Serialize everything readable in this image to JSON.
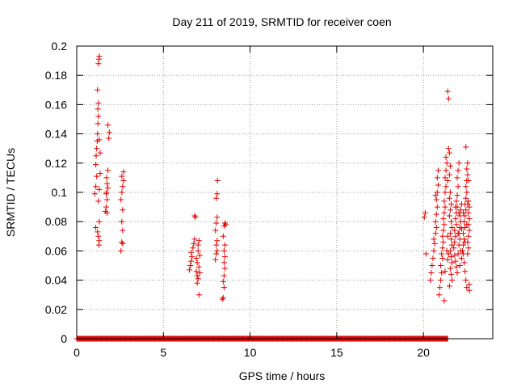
{
  "chart_data": {
    "type": "scatter",
    "title": "Day 211 of 2019, SRMTID for receiver coen",
    "xlabel": "GPS time / hours",
    "ylabel": "SRMTID / TECUs",
    "xlim": [
      0,
      24
    ],
    "ylim": [
      0,
      0.2
    ],
    "x_ticks": [
      0,
      5,
      10,
      15,
      20
    ],
    "x_tick_labels": [
      "0",
      "5",
      "10",
      "15",
      "20"
    ],
    "y_ticks": [
      0,
      0.02,
      0.04,
      0.06,
      0.08,
      0.1,
      0.12,
      0.14,
      0.16,
      0.18,
      0.2
    ],
    "y_tick_labels": [
      "0",
      "0.02",
      "0.04",
      "0.06",
      "0.08",
      "0.1",
      "0.12",
      "0.14",
      "0.16",
      "0.18",
      "0.2"
    ],
    "grid": true,
    "marker": "+",
    "color": "#e00000",
    "series": [
      {
        "name": "SRMTID",
        "points": [
          [
            1.05,
            0.099
          ],
          [
            1.1,
            0.104
          ],
          [
            1.15,
            0.111
          ],
          [
            1.1,
            0.119
          ],
          [
            1.12,
            0.125
          ],
          [
            1.15,
            0.13
          ],
          [
            1.18,
            0.135
          ],
          [
            1.2,
            0.14
          ],
          [
            1.22,
            0.147
          ],
          [
            1.25,
            0.152
          ],
          [
            1.22,
            0.157
          ],
          [
            1.25,
            0.161
          ],
          [
            1.2,
            0.17
          ],
          [
            1.25,
            0.188
          ],
          [
            1.28,
            0.191
          ],
          [
            1.3,
            0.193
          ],
          [
            1.1,
            0.076
          ],
          [
            1.2,
            0.073
          ],
          [
            1.25,
            0.07
          ],
          [
            1.3,
            0.067
          ],
          [
            1.28,
            0.064
          ],
          [
            1.3,
            0.08
          ],
          [
            1.25,
            0.094
          ],
          [
            1.3,
            0.102
          ],
          [
            1.35,
            0.113
          ],
          [
            1.3,
            0.136
          ],
          [
            1.35,
            0.127
          ],
          [
            1.65,
            0.087
          ],
          [
            1.7,
            0.09
          ],
          [
            1.75,
            0.095
          ],
          [
            1.72,
            0.1
          ],
          [
            1.8,
            0.103
          ],
          [
            1.75,
            0.106
          ],
          [
            1.72,
            0.11
          ],
          [
            1.8,
            0.115
          ],
          [
            1.85,
            0.137
          ],
          [
            1.88,
            0.141
          ],
          [
            1.8,
            0.146
          ],
          [
            1.7,
            0.099
          ],
          [
            1.75,
            0.086
          ],
          [
            2.55,
            0.06
          ],
          [
            2.6,
            0.066
          ],
          [
            2.65,
            0.074
          ],
          [
            2.6,
            0.08
          ],
          [
            2.65,
            0.088
          ],
          [
            2.55,
            0.095
          ],
          [
            2.6,
            0.1
          ],
          [
            2.65,
            0.104
          ],
          [
            2.7,
            0.108
          ],
          [
            2.6,
            0.111
          ],
          [
            2.7,
            0.114
          ],
          [
            2.65,
            0.065
          ],
          [
            6.5,
            0.047
          ],
          [
            6.55,
            0.05
          ],
          [
            6.6,
            0.053
          ],
          [
            6.65,
            0.056
          ],
          [
            6.6,
            0.059
          ],
          [
            6.7,
            0.062
          ],
          [
            6.75,
            0.065
          ],
          [
            6.8,
            0.068
          ],
          [
            6.85,
            0.083
          ],
          [
            6.8,
            0.084
          ],
          [
            6.9,
            0.046
          ],
          [
            6.95,
            0.043
          ],
          [
            7.0,
            0.041
          ],
          [
            6.95,
            0.038
          ],
          [
            7.05,
            0.03
          ],
          [
            7.0,
            0.064
          ],
          [
            7.05,
            0.067
          ],
          [
            6.9,
            0.055
          ],
          [
            6.95,
            0.052
          ],
          [
            7.05,
            0.049
          ],
          [
            7.1,
            0.045
          ],
          [
            7.0,
            0.06
          ],
          [
            7.1,
            0.057
          ],
          [
            8.0,
            0.054
          ],
          [
            8.05,
            0.058
          ],
          [
            8.1,
            0.06
          ],
          [
            8.05,
            0.064
          ],
          [
            8.1,
            0.067
          ],
          [
            8.0,
            0.074
          ],
          [
            8.05,
            0.079
          ],
          [
            8.1,
            0.083
          ],
          [
            8.05,
            0.096
          ],
          [
            8.1,
            0.099
          ],
          [
            8.12,
            0.108
          ],
          [
            8.4,
            0.027
          ],
          [
            8.45,
            0.028
          ],
          [
            8.5,
            0.035
          ],
          [
            8.45,
            0.039
          ],
          [
            8.5,
            0.043
          ],
          [
            8.55,
            0.048
          ],
          [
            8.5,
            0.052
          ],
          [
            8.55,
            0.056
          ],
          [
            8.5,
            0.06
          ],
          [
            8.55,
            0.064
          ],
          [
            8.45,
            0.07
          ],
          [
            8.5,
            0.077
          ],
          [
            8.55,
            0.079
          ],
          [
            8.6,
            0.078
          ],
          [
            20.05,
            0.083
          ],
          [
            20.1,
            0.086
          ],
          [
            20.15,
            0.058
          ],
          [
            20.4,
            0.04
          ],
          [
            20.45,
            0.045
          ],
          [
            20.5,
            0.05
          ],
          [
            20.55,
            0.055
          ],
          [
            20.6,
            0.06
          ],
          [
            20.65,
            0.065
          ],
          [
            20.6,
            0.068
          ],
          [
            20.7,
            0.072
          ],
          [
            20.75,
            0.076
          ],
          [
            20.7,
            0.08
          ],
          [
            20.75,
            0.085
          ],
          [
            20.8,
            0.09
          ],
          [
            20.75,
            0.095
          ],
          [
            20.8,
            0.1
          ],
          [
            20.85,
            0.105
          ],
          [
            20.8,
            0.11
          ],
          [
            20.85,
            0.115
          ],
          [
            20.7,
            0.098
          ],
          [
            20.9,
            0.03
          ],
          [
            20.95,
            0.035
          ],
          [
            21.0,
            0.04
          ],
          [
            21.05,
            0.045
          ],
          [
            21.0,
            0.05
          ],
          [
            21.1,
            0.055
          ],
          [
            21.05,
            0.058
          ],
          [
            21.1,
            0.062
          ],
          [
            21.15,
            0.066
          ],
          [
            21.1,
            0.07
          ],
          [
            21.15,
            0.074
          ],
          [
            21.2,
            0.078
          ],
          [
            21.15,
            0.082
          ],
          [
            21.2,
            0.086
          ],
          [
            21.25,
            0.09
          ],
          [
            21.2,
            0.094
          ],
          [
            21.25,
            0.1
          ],
          [
            21.3,
            0.104
          ],
          [
            21.25,
            0.11
          ],
          [
            21.3,
            0.115
          ],
          [
            21.35,
            0.12
          ],
          [
            21.3,
            0.124
          ],
          [
            21.2,
            0.026
          ],
          [
            21.35,
            0.06
          ],
          [
            21.25,
            0.046
          ],
          [
            21.4,
            0.169
          ],
          [
            21.45,
            0.164
          ],
          [
            21.5,
            0.127
          ],
          [
            21.45,
            0.13
          ],
          [
            21.55,
            0.118
          ],
          [
            21.5,
            0.112
          ],
          [
            21.4,
            0.108
          ],
          [
            21.55,
            0.1
          ],
          [
            21.5,
            0.096
          ],
          [
            21.6,
            0.092
          ],
          [
            21.55,
            0.088
          ],
          [
            21.5,
            0.084
          ],
          [
            21.6,
            0.08
          ],
          [
            21.65,
            0.076
          ],
          [
            21.55,
            0.072
          ],
          [
            21.6,
            0.068
          ],
          [
            21.65,
            0.064
          ],
          [
            21.55,
            0.06
          ],
          [
            21.6,
            0.056
          ],
          [
            21.65,
            0.052
          ],
          [
            21.55,
            0.048
          ],
          [
            21.6,
            0.044
          ],
          [
            21.65,
            0.04
          ],
          [
            21.5,
            0.036
          ],
          [
            21.45,
            0.058
          ],
          [
            21.4,
            0.07
          ],
          [
            21.4,
            0.054
          ],
          [
            21.75,
            0.062
          ],
          [
            21.8,
            0.066
          ],
          [
            21.85,
            0.07
          ],
          [
            21.8,
            0.074
          ],
          [
            21.9,
            0.078
          ],
          [
            21.85,
            0.082
          ],
          [
            21.9,
            0.086
          ],
          [
            21.95,
            0.09
          ],
          [
            21.9,
            0.094
          ],
          [
            21.95,
            0.098
          ],
          [
            22.0,
            0.104
          ],
          [
            21.95,
            0.11
          ],
          [
            22.0,
            0.115
          ],
          [
            22.05,
            0.12
          ],
          [
            21.8,
            0.057
          ],
          [
            21.85,
            0.053
          ],
          [
            21.9,
            0.049
          ],
          [
            21.95,
            0.045
          ],
          [
            22.0,
            0.058
          ],
          [
            22.05,
            0.064
          ],
          [
            22.1,
            0.068
          ],
          [
            22.05,
            0.072
          ],
          [
            22.1,
            0.076
          ],
          [
            22.15,
            0.08
          ],
          [
            22.1,
            0.084
          ],
          [
            22.15,
            0.088
          ],
          [
            22.2,
            0.092
          ],
          [
            22.15,
            0.06
          ],
          [
            22.2,
            0.055
          ],
          [
            22.0,
            0.072
          ],
          [
            21.85,
            0.09
          ],
          [
            22.1,
            0.05
          ],
          [
            22.2,
            0.075
          ],
          [
            22.05,
            0.086
          ],
          [
            22.25,
            0.06
          ],
          [
            22.3,
            0.064
          ],
          [
            22.35,
            0.068
          ],
          [
            22.3,
            0.072
          ],
          [
            22.4,
            0.076
          ],
          [
            22.35,
            0.08
          ],
          [
            22.4,
            0.084
          ],
          [
            22.45,
            0.088
          ],
          [
            22.4,
            0.092
          ],
          [
            22.45,
            0.096
          ],
          [
            22.5,
            0.1
          ],
          [
            22.45,
            0.104
          ],
          [
            22.5,
            0.108
          ],
          [
            22.55,
            0.112
          ],
          [
            22.5,
            0.116
          ],
          [
            22.55,
            0.12
          ],
          [
            22.45,
            0.131
          ],
          [
            22.3,
            0.058
          ],
          [
            22.35,
            0.052
          ],
          [
            22.4,
            0.046
          ],
          [
            22.45,
            0.04
          ],
          [
            22.5,
            0.035
          ],
          [
            22.55,
            0.058
          ],
          [
            22.6,
            0.062
          ],
          [
            22.55,
            0.066
          ],
          [
            22.6,
            0.07
          ],
          [
            22.65,
            0.074
          ],
          [
            22.6,
            0.078
          ],
          [
            22.65,
            0.082
          ],
          [
            22.6,
            0.086
          ],
          [
            22.65,
            0.09
          ],
          [
            22.6,
            0.108
          ],
          [
            22.65,
            0.033
          ],
          [
            22.65,
            0.037
          ],
          [
            22.6,
            0.094
          ],
          [
            22.3,
            0.086
          ],
          [
            22.5,
            0.078
          ],
          [
            22.4,
            0.066
          ],
          [
            22.55,
            0.092
          ]
        ],
        "zero_line_x": [
          0,
          21.4
        ]
      }
    ]
  }
}
